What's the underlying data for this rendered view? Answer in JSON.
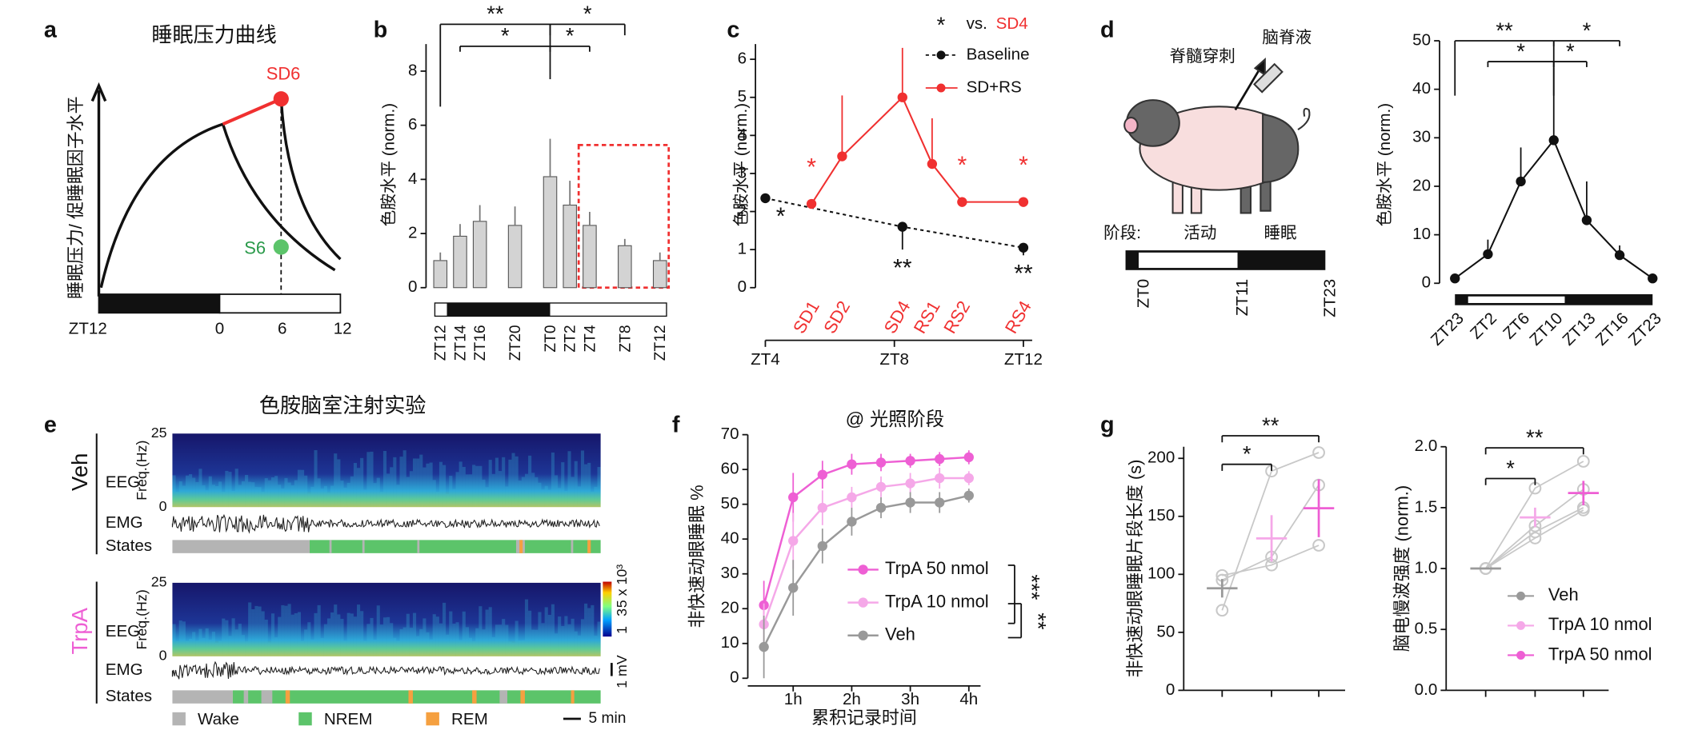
{
  "panel_labels": [
    "a",
    "b",
    "c",
    "d",
    "e",
    "f",
    "g"
  ],
  "panel_a": {
    "title": "睡眠压力曲线",
    "ylabel": "睡眠压力/ 促睡眠因子水平",
    "point_labels": [
      "SD6",
      "S6"
    ],
    "xlabels": [
      "ZT12",
      "0",
      "6",
      "12"
    ]
  },
  "panel_d_diagram": {
    "labels": [
      "脊髓穿刺",
      "脑脊液"
    ],
    "phase_label": "阶段:",
    "phases": [
      "活动",
      "睡眠"
    ],
    "ticks": [
      "ZT0",
      "ZT11",
      "ZT23"
    ]
  },
  "panel_e": {
    "title": "色胺脑室注射实验",
    "groups": [
      "Veh",
      "TrpA"
    ],
    "rows": [
      "EEG",
      "EMG",
      "States"
    ],
    "freq_label": "Freq.(Hz)",
    "freq_ticks": [
      "25",
      "0"
    ],
    "colorbar_ticks": [
      "5 x 10³",
      "3",
      "1"
    ],
    "scale_mv": "1 mV",
    "legend": [
      "Wake",
      "NREM",
      "REM"
    ],
    "scale_time": "5 min"
  },
  "chart_data": [
    {
      "type": "bar",
      "ylabel": "色胺水平 (norm.)",
      "categories": [
        "ZT12",
        "ZT14",
        "ZT16",
        "ZT20",
        "ZT0",
        "ZT2",
        "ZT4",
        "ZT8",
        "ZT12"
      ],
      "values": [
        1.0,
        1.9,
        2.45,
        2.3,
        4.1,
        3.05,
        2.3,
        1.55,
        1.0
      ],
      "errors": [
        0.3,
        0.45,
        0.6,
        0.7,
        1.4,
        0.9,
        0.5,
        0.25,
        0.3
      ],
      "color": "#d3d3d3",
      "ylim": [
        0,
        9
      ],
      "yticks": [
        0,
        2,
        4,
        6,
        8
      ],
      "annotations": [
        "**",
        "*",
        "*",
        "*"
      ]
    },
    {
      "type": "line",
      "ylabel": "色胺水平 (norm.)",
      "xlim": [
        4,
        12
      ],
      "xticks": [
        {
          "value": 4,
          "label": "ZT4"
        },
        {
          "value": 8,
          "label": "ZT8"
        },
        {
          "value": 12,
          "label": "ZT12"
        }
      ],
      "ylim": [
        0,
        6.4
      ],
      "yticks": [
        0,
        1,
        2,
        3,
        4,
        5,
        6
      ],
      "significance_legend": {
        "symbol": "*",
        "text": "vs.",
        "ref": "SD4"
      },
      "series": [
        {
          "name": "Baseline",
          "color": "#111111",
          "dashed": true,
          "error_bars": "lower",
          "x": [
            4,
            8.25,
            12
          ],
          "values": [
            2.35,
            1.6,
            1.05
          ],
          "errors": [
            0,
            0.6,
            0.2
          ],
          "significance": [
            "*",
            "**",
            "**"
          ]
        },
        {
          "name": "SD+RS",
          "color": "#f03030",
          "dashed": false,
          "error_bars": "upper",
          "x": [
            5.43,
            6.38,
            8.25,
            9.17,
            10.1,
            12
          ],
          "values": [
            2.2,
            3.45,
            5.0,
            3.25,
            2.25,
            2.25
          ],
          "errors": [
            0.05,
            1.6,
            1.3,
            1.2,
            0.1,
            0.05
          ],
          "point_labels": [
            "SD1",
            "SD2",
            "SD4",
            "RS1",
            "RS2",
            "RS4"
          ],
          "significance": [
            "*",
            null,
            null,
            null,
            "*",
            "*"
          ]
        }
      ]
    },
    {
      "type": "line",
      "ylabel": "色胺水平 (norm.)",
      "categories": [
        "ZT23",
        "ZT2",
        "ZT6",
        "ZT10",
        "ZT13",
        "ZT16",
        "ZT23"
      ],
      "values": [
        1,
        6,
        21,
        29.5,
        13,
        5.8,
        1
      ],
      "errors": [
        0,
        3,
        7,
        15,
        8,
        2,
        0
      ],
      "color": "#111111",
      "ylim": [
        0,
        50
      ],
      "yticks": [
        0,
        10,
        20,
        30,
        40,
        50
      ],
      "annotations": [
        "**",
        "*",
        "*",
        "*"
      ]
    },
    {
      "type": "line",
      "title": "@ 光照阶段",
      "xlabel": "累积记录时间",
      "ylabel": "非快速动眼睡眠 %",
      "x": [
        0.5,
        1,
        1.5,
        2,
        2.5,
        3,
        3.5,
        4
      ],
      "xlim": [
        0,
        4.2
      ],
      "xticks": [
        {
          "value": 1,
          "label": "1h"
        },
        {
          "value": 2,
          "label": "2h"
        },
        {
          "value": 3,
          "label": "3h"
        },
        {
          "value": 4,
          "label": "4h"
        }
      ],
      "ylim": [
        0,
        70
      ],
      "yticks": [
        0,
        10,
        20,
        30,
        40,
        50,
        60,
        70
      ],
      "series": [
        {
          "name": "TrpA 50 nmol",
          "color": "#ee5fd4",
          "values": [
            21,
            52,
            58.5,
            61.5,
            62,
            62.5,
            63,
            63.5
          ],
          "errors": [
            7,
            7,
            4,
            3,
            2.5,
            2,
            2,
            2
          ]
        },
        {
          "name": "TrpA 10 nmol",
          "color": "#f5a8e8",
          "values": [
            15.5,
            39.5,
            49,
            52,
            55,
            56,
            57.5,
            57.5
          ],
          "errors": [
            6,
            8,
            5,
            3,
            3,
            3,
            3,
            2
          ]
        },
        {
          "name": "Veh",
          "color": "#999999",
          "values": [
            9,
            26,
            38,
            45,
            49,
            50.5,
            50.5,
            52.5
          ],
          "errors": [
            9,
            8,
            5,
            4,
            3,
            3,
            3,
            2
          ]
        }
      ],
      "annotations": [
        "***",
        "**"
      ]
    },
    {
      "type": "paired",
      "ylabel": "非快速动眼睡眠片段长度 (s)",
      "ylim": [
        0,
        210
      ],
      "yticks": [
        0,
        50,
        100,
        150,
        200
      ],
      "subject_color": "#c8c8c8",
      "subjects": [
        [
          69,
          189,
          205
        ],
        [
          95,
          115,
          177
        ],
        [
          99,
          108,
          125
        ]
      ],
      "means": [
        88,
        131,
        157
      ],
      "errors": [
        8,
        20,
        25
      ],
      "colors": [
        "#999999",
        "#f5a8e8",
        "#ee5fd4"
      ],
      "annotations": [
        "*",
        "**"
      ]
    },
    {
      "type": "paired",
      "ylabel": "脑电慢波强度 (norm.)",
      "ylim": [
        0,
        2.0
      ],
      "yticks": [
        {
          "value": 0,
          "label": "0.0"
        },
        {
          "value": 0.5,
          "label": "0.5"
        },
        {
          "value": 1.0,
          "label": "1.0"
        },
        {
          "value": 1.5,
          "label": "1.5"
        },
        {
          "value": 2.0,
          "label": "2.0"
        }
      ],
      "subject_color": "#c8c8c8",
      "subjects": [
        [
          1,
          1.66,
          1.88
        ],
        [
          1,
          1.35,
          1.65
        ],
        [
          1,
          1.3,
          1.5
        ],
        [
          1,
          1.25,
          1.48
        ]
      ],
      "means": [
        1.0,
        1.42,
        1.62
      ],
      "errors": [
        0,
        0.08,
        0.1
      ],
      "colors": [
        "#999999",
        "#f5a8e8",
        "#ee5fd4"
      ],
      "legend": [
        "Veh",
        "TrpA 10 nmol",
        "TrpA 50 nmol"
      ],
      "annotations": [
        "*",
        "**"
      ]
    }
  ]
}
